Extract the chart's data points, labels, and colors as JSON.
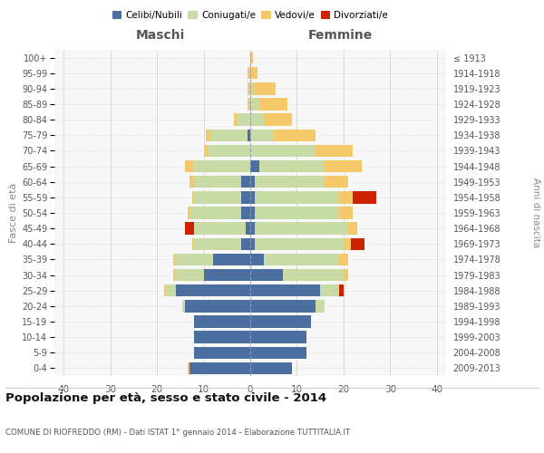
{
  "age_groups": [
    "0-4",
    "5-9",
    "10-14",
    "15-19",
    "20-24",
    "25-29",
    "30-34",
    "35-39",
    "40-44",
    "45-49",
    "50-54",
    "55-59",
    "60-64",
    "65-69",
    "70-74",
    "75-79",
    "80-84",
    "85-89",
    "90-94",
    "95-99",
    "100+"
  ],
  "birth_years": [
    "2009-2013",
    "2004-2008",
    "1999-2003",
    "1994-1998",
    "1989-1993",
    "1984-1988",
    "1979-1983",
    "1974-1978",
    "1969-1973",
    "1964-1968",
    "1959-1963",
    "1954-1958",
    "1949-1953",
    "1944-1948",
    "1939-1943",
    "1934-1938",
    "1929-1933",
    "1924-1928",
    "1919-1923",
    "1914-1918",
    "≤ 1913"
  ],
  "males": {
    "celibi": [
      13,
      12,
      12,
      12,
      14,
      16,
      10,
      8,
      2,
      1,
      2,
      2,
      2,
      0,
      0,
      0.5,
      0,
      0,
      0,
      0,
      0
    ],
    "coniugati": [
      0,
      0,
      0,
      0,
      0.5,
      2,
      6,
      8,
      10,
      11,
      11,
      10,
      10,
      12,
      9,
      8,
      3,
      0,
      0,
      0,
      0
    ],
    "vedovi": [
      0.5,
      0,
      0,
      0,
      0,
      0.5,
      0.5,
      0.5,
      0.5,
      0,
      0.5,
      0.5,
      1,
      2,
      1,
      1,
      0.5,
      0.5,
      0.5,
      0.5,
      0
    ],
    "divorziati": [
      0,
      0,
      0,
      0,
      0,
      0,
      0,
      0,
      0,
      2,
      0,
      0,
      0,
      0,
      0,
      0,
      0,
      0,
      0,
      0,
      0
    ]
  },
  "females": {
    "nubili": [
      9,
      12,
      12,
      13,
      14,
      15,
      7,
      3,
      1,
      1,
      1,
      1,
      1,
      2,
      0,
      0,
      0,
      0,
      0,
      0,
      0
    ],
    "coniugate": [
      0,
      0,
      0,
      0,
      2,
      4,
      13,
      16,
      19,
      20,
      18,
      18,
      15,
      14,
      14,
      5,
      3,
      2,
      0.5,
      0,
      0
    ],
    "vedove": [
      0,
      0,
      0,
      0,
      0,
      0,
      1,
      2,
      1.5,
      2,
      3,
      3,
      5,
      8,
      8,
      9,
      6,
      6,
      5,
      1.5,
      0.5
    ],
    "divorziate": [
      0,
      0,
      0,
      0,
      0,
      1,
      0,
      0,
      3,
      0,
      0,
      5,
      0,
      0,
      0,
      0,
      0,
      0,
      0,
      0,
      0
    ]
  },
  "colors": {
    "celibi_nubili": "#4a6fa0",
    "coniugati": "#c8dba4",
    "vedovi": "#f5c96a",
    "divorziati": "#cc2200"
  },
  "title": "Popolazione per età, sesso e stato civile - 2014",
  "subtitle": "COMUNE DI RIOFREDDO (RM) - Dati ISTAT 1° gennaio 2014 - Elaborazione TUTTITALIA.IT",
  "xlabel_maschi": "Maschi",
  "xlabel_femmine": "Femmine",
  "ylabel": "Fasce di età",
  "ylabel_right": "Anni di nascita",
  "xlim": 42,
  "bg_color": "#ffffff",
  "plot_bg": "#f7f7f7",
  "grid_color": "#cccccc"
}
